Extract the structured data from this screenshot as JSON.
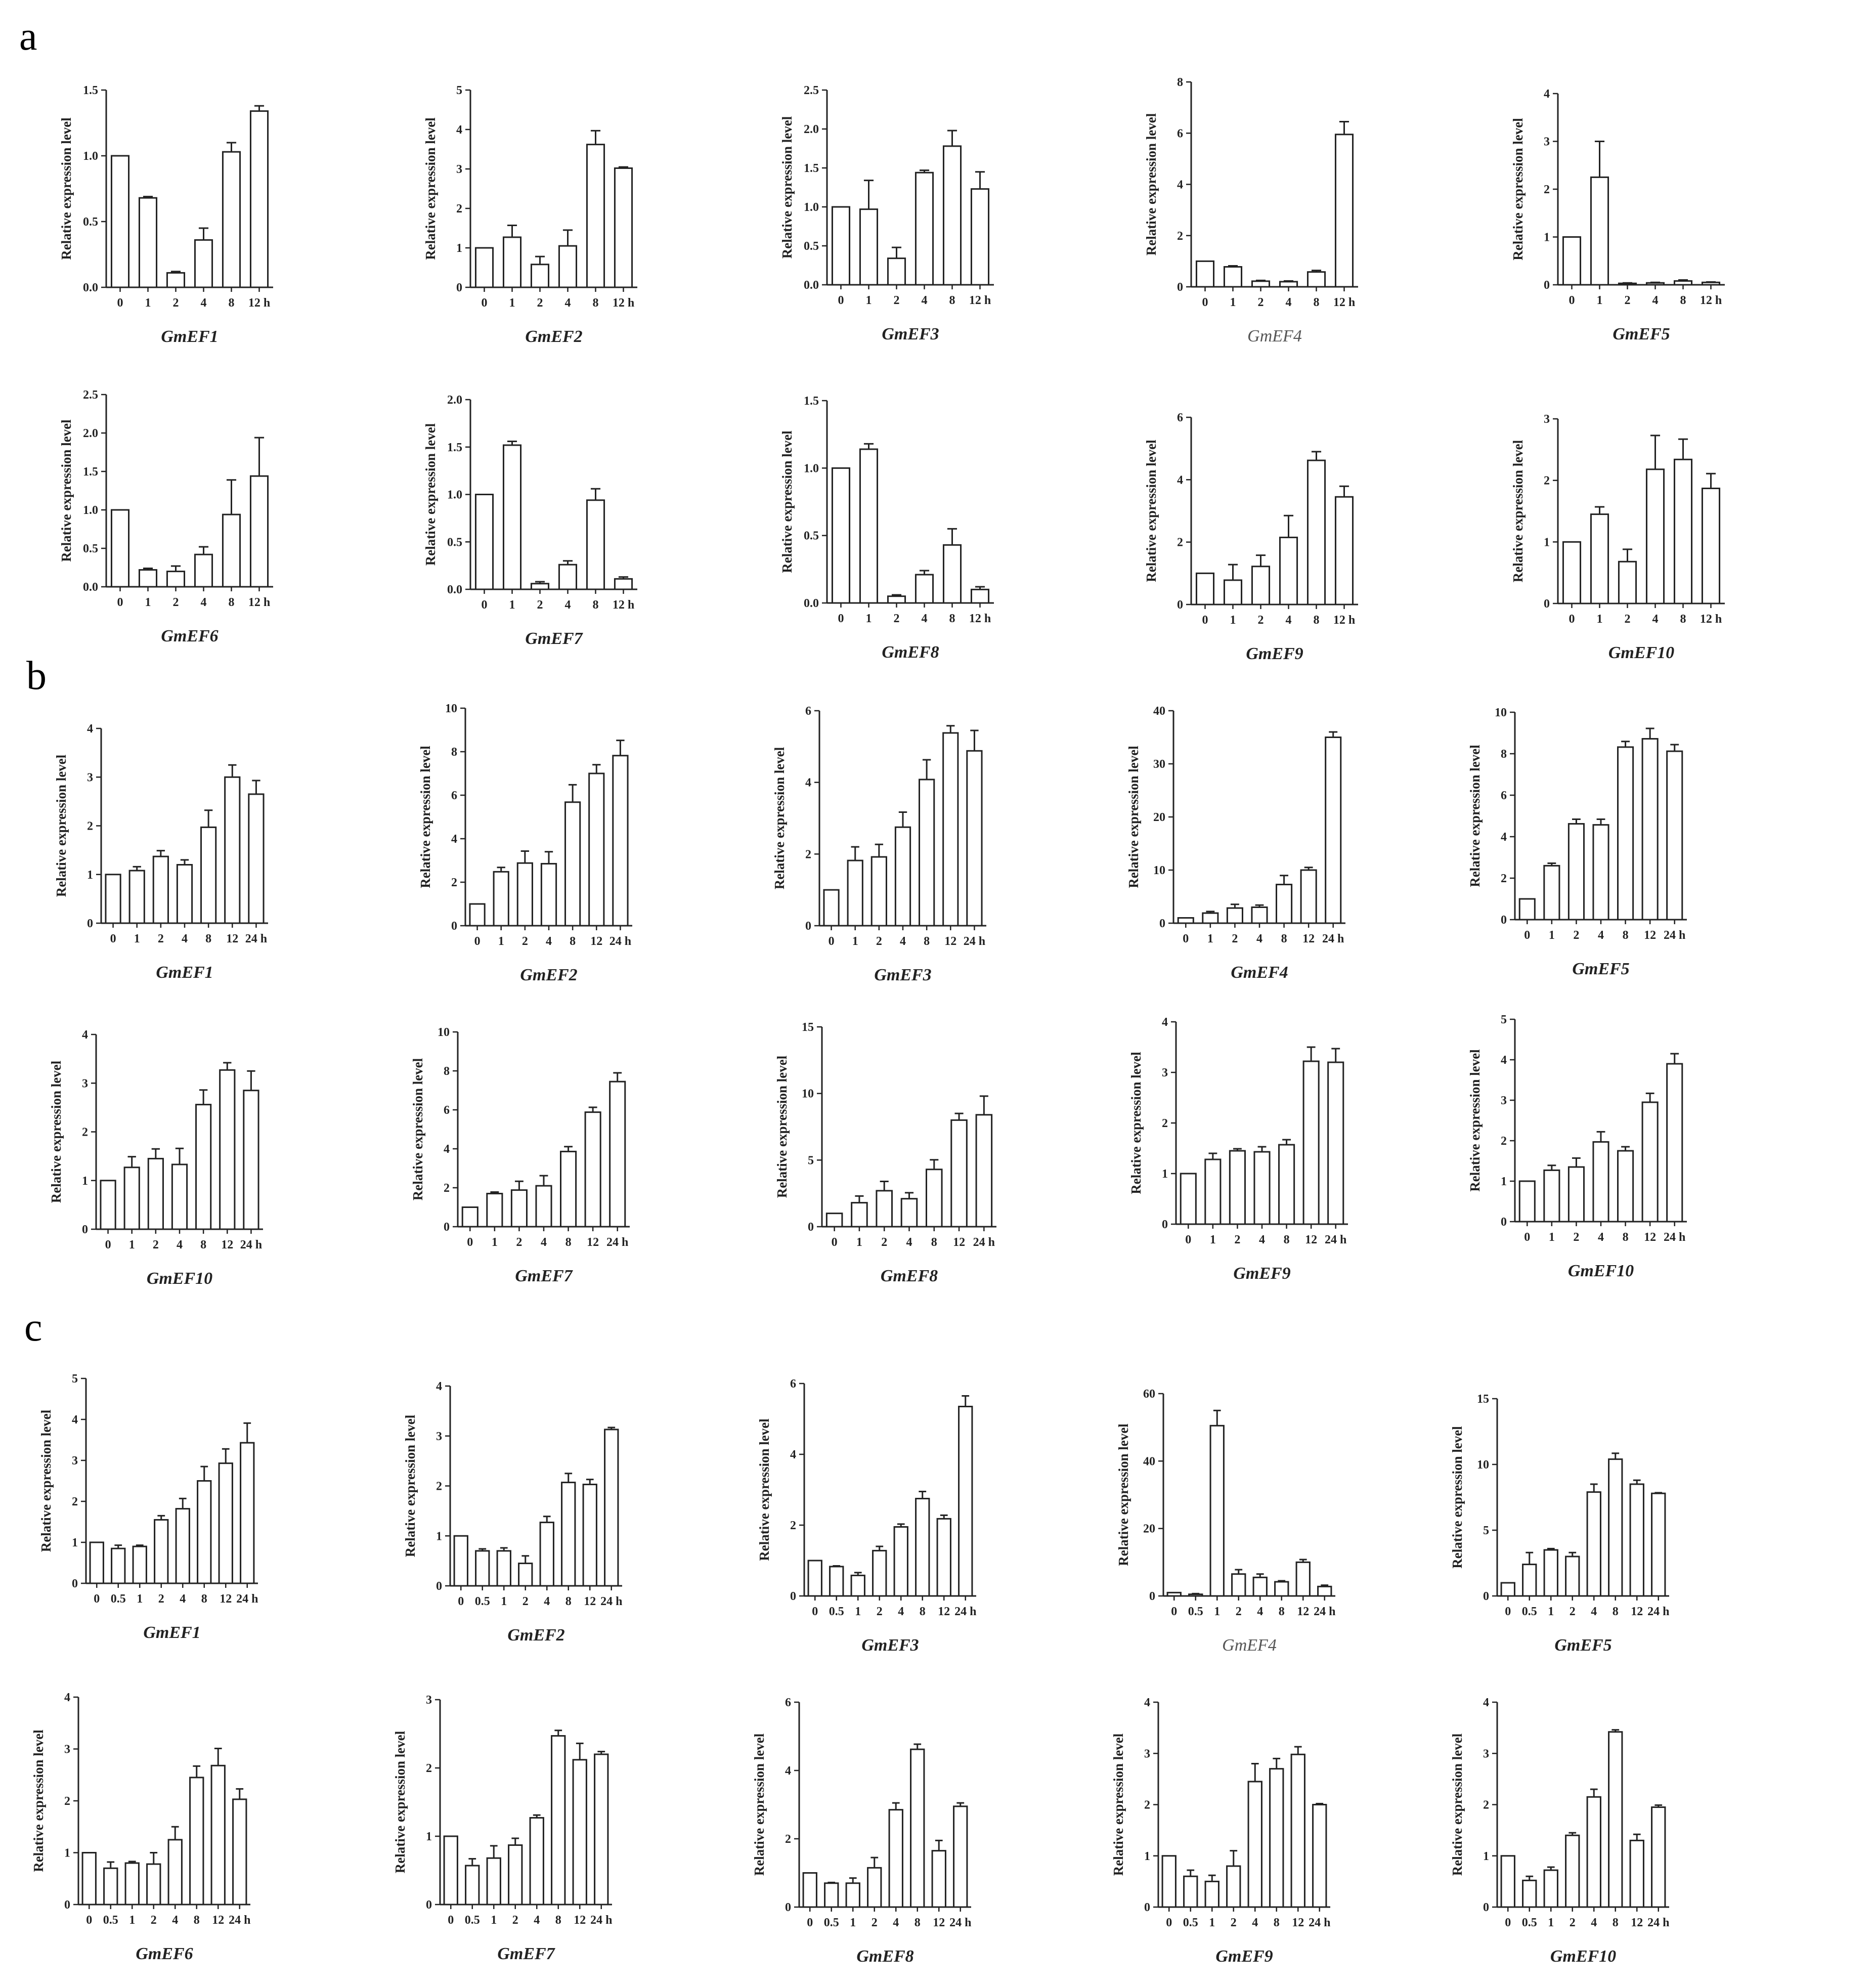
{
  "panels": [
    {
      "label": "a"
    },
    {
      "label": "b"
    },
    {
      "label": "c"
    }
  ],
  "chart_data": [
    {
      "panel": "a",
      "type": "bar",
      "title": "GmEF1",
      "ylabel": "Relative expression  level",
      "categories": [
        "0",
        "1",
        "2",
        "4",
        "8",
        "12 h"
      ],
      "values": [
        1.0,
        0.68,
        0.11,
        0.36,
        1.03,
        1.34
      ],
      "errors": [
        0,
        0.01,
        0.01,
        0.09,
        0.07,
        0.04
      ],
      "ylim": [
        0,
        1.5
      ],
      "yticks": [
        "0.0",
        "0.5",
        "1.0",
        "1.5"
      ]
    },
    {
      "panel": "a",
      "type": "bar",
      "title": "GmEF2",
      "ylabel": "Relative expression  level",
      "categories": [
        "0",
        "1",
        "2",
        "4",
        "8",
        "12 h"
      ],
      "values": [
        1.0,
        1.27,
        0.58,
        1.05,
        3.62,
        3.02
      ],
      "errors": [
        0,
        0.3,
        0.2,
        0.4,
        0.35,
        0.03
      ],
      "ylim": [
        0,
        5
      ],
      "yticks": [
        "0",
        "1",
        "2",
        "3",
        "4",
        "5"
      ]
    },
    {
      "panel": "a",
      "type": "bar",
      "title": "GmEF3",
      "ylabel": "Relative expression  level",
      "categories": [
        "0",
        "1",
        "2",
        "4",
        "8",
        "12 h"
      ],
      "values": [
        1.0,
        0.97,
        0.34,
        1.44,
        1.78,
        1.23
      ],
      "errors": [
        0,
        0.37,
        0.14,
        0.03,
        0.2,
        0.22
      ],
      "ylim": [
        0,
        2.5
      ],
      "yticks": [
        "0.0",
        "0.5",
        "1.0",
        "1.5",
        "2.0",
        "2.5"
      ]
    },
    {
      "panel": "a",
      "type": "bar",
      "title": "GmEF4",
      "title_style": "light",
      "ylabel": "Relative expression level",
      "categories": [
        "0",
        "1",
        "2",
        "4",
        "8",
        "12 h"
      ],
      "values": [
        1.0,
        0.78,
        0.22,
        0.2,
        0.58,
        5.95
      ],
      "errors": [
        0,
        0.04,
        0.03,
        0.03,
        0.06,
        0.5
      ],
      "ylim": [
        0,
        8
      ],
      "yticks": [
        "0",
        "2",
        "4",
        "6",
        "8"
      ]
    },
    {
      "panel": "a",
      "type": "bar",
      "title": "GmEF5",
      "ylabel": "Relative expression  level",
      "categories": [
        "0",
        "1",
        "2",
        "4",
        "8",
        "12 h"
      ],
      "values": [
        1.0,
        2.25,
        0.03,
        0.04,
        0.08,
        0.05
      ],
      "errors": [
        0,
        0.75,
        0.01,
        0.01,
        0.02,
        0.01
      ],
      "ylim": [
        0,
        4
      ],
      "yticks": [
        "0",
        "1",
        "2",
        "3",
        "4"
      ]
    },
    {
      "panel": "a",
      "type": "bar",
      "title": "GmEF6",
      "ylabel": "Relative expression  level",
      "categories": [
        "0",
        "1",
        "2",
        "4",
        "8",
        "12 h"
      ],
      "values": [
        1.0,
        0.22,
        0.2,
        0.42,
        0.94,
        1.44
      ],
      "errors": [
        0,
        0.02,
        0.07,
        0.1,
        0.45,
        0.5
      ],
      "ylim": [
        0,
        2.5
      ],
      "yticks": [
        "0.0",
        "0.5",
        "1.0",
        "1.5",
        "2.0",
        "2.5"
      ]
    },
    {
      "panel": "a",
      "type": "bar",
      "title": "GmEF7",
      "ylabel": "Relative expression  level",
      "categories": [
        "0",
        "1",
        "2",
        "4",
        "8",
        "12 h"
      ],
      "values": [
        1.0,
        1.52,
        0.06,
        0.26,
        0.94,
        0.11
      ],
      "errors": [
        0,
        0.04,
        0.02,
        0.04,
        0.12,
        0.02
      ],
      "ylim": [
        0,
        2.0
      ],
      "yticks": [
        "0.0",
        "0.5",
        "1.0",
        "1.5",
        "2.0"
      ]
    },
    {
      "panel": "a",
      "type": "bar",
      "title": "GmEF8",
      "ylabel": "Relative expression  level",
      "categories": [
        "0",
        "1",
        "2",
        "4",
        "8",
        "12 h"
      ],
      "values": [
        1.0,
        1.14,
        0.05,
        0.21,
        0.43,
        0.1
      ],
      "errors": [
        0,
        0.04,
        0.01,
        0.03,
        0.12,
        0.02
      ],
      "ylim": [
        0,
        1.5
      ],
      "yticks": [
        "0.0",
        "0.5",
        "1.0",
        "1.5"
      ]
    },
    {
      "panel": "a",
      "type": "bar",
      "title": "GmEF9",
      "ylabel": "Relative expression  level",
      "categories": [
        "0",
        "1",
        "2",
        "4",
        "8",
        "12 h"
      ],
      "values": [
        1.0,
        0.78,
        1.22,
        2.15,
        4.62,
        3.45
      ],
      "errors": [
        0,
        0.5,
        0.36,
        0.7,
        0.28,
        0.34
      ],
      "ylim": [
        0,
        6
      ],
      "yticks": [
        "0",
        "2",
        "4",
        "6"
      ]
    },
    {
      "panel": "a",
      "type": "bar",
      "title": "GmEF10",
      "ylabel": "Relative expression  level",
      "categories": [
        "0",
        "1",
        "2",
        "4",
        "8",
        "12 h"
      ],
      "values": [
        1.0,
        1.45,
        0.68,
        2.18,
        2.34,
        1.87
      ],
      "errors": [
        0,
        0.12,
        0.2,
        0.55,
        0.33,
        0.24
      ],
      "ylim": [
        0,
        3
      ],
      "yticks": [
        "0",
        "1",
        "2",
        "3"
      ]
    },
    {
      "panel": "b",
      "type": "bar",
      "title": "GmEF1",
      "ylabel": "Relative expression  level",
      "categories": [
        "0",
        "1",
        "2",
        "4",
        "8",
        "12",
        "24 h"
      ],
      "values": [
        1.0,
        1.08,
        1.37,
        1.2,
        1.97,
        3.0,
        2.65
      ],
      "errors": [
        0,
        0.08,
        0.12,
        0.1,
        0.35,
        0.25,
        0.28
      ],
      "ylim": [
        0,
        4
      ],
      "yticks": [
        "0",
        "1",
        "2",
        "3",
        "4"
      ]
    },
    {
      "panel": "b",
      "type": "bar",
      "title": "GmEF2",
      "ylabel": "Relative expression  level",
      "categories": [
        "0",
        "1",
        "2",
        "4",
        "8",
        "12",
        "24 h"
      ],
      "values": [
        1.0,
        2.48,
        2.88,
        2.85,
        5.68,
        7.0,
        7.82
      ],
      "errors": [
        0,
        0.2,
        0.55,
        0.55,
        0.8,
        0.4,
        0.7
      ],
      "ylim": [
        0,
        10
      ],
      "yticks": [
        "0",
        "2",
        "4",
        "6",
        "8",
        "10"
      ]
    },
    {
      "panel": "b",
      "type": "bar",
      "title": "GmEF3",
      "ylabel": "Relative expression  level",
      "categories": [
        "0",
        "1",
        "2",
        "4",
        "8",
        "12",
        "24 h"
      ],
      "values": [
        1.0,
        1.82,
        1.92,
        2.75,
        4.08,
        5.38,
        4.88
      ],
      "errors": [
        0,
        0.38,
        0.35,
        0.42,
        0.55,
        0.2,
        0.57
      ],
      "ylim": [
        0,
        6
      ],
      "yticks": [
        "0",
        "2",
        "4",
        "6"
      ]
    },
    {
      "panel": "b",
      "type": "bar",
      "title": "GmEF4",
      "ylabel": "Relative expression  level",
      "categories": [
        "0",
        "1",
        "2",
        "4",
        "8",
        "12",
        "24 h"
      ],
      "values": [
        1.0,
        1.9,
        2.85,
        3.0,
        7.28,
        10.0,
        35.0
      ],
      "errors": [
        0,
        0.3,
        0.7,
        0.4,
        1.7,
        0.5,
        1.0
      ],
      "ylim": [
        0,
        40
      ],
      "yticks": [
        "0",
        "10",
        "20",
        "30",
        "40"
      ]
    },
    {
      "panel": "b",
      "type": "bar",
      "title": "GmEF5",
      "ylabel": "Relative expression  level",
      "categories": [
        "0",
        "1",
        "2",
        "4",
        "8",
        "12",
        "24 h"
      ],
      "values": [
        1.0,
        2.6,
        4.62,
        4.57,
        8.32,
        8.72,
        8.12
      ],
      "errors": [
        0,
        0.12,
        0.22,
        0.27,
        0.27,
        0.5,
        0.32
      ],
      "ylim": [
        0,
        10
      ],
      "yticks": [
        "0",
        "2",
        "4",
        "6",
        "8",
        "10"
      ]
    },
    {
      "panel": "b",
      "type": "bar",
      "title": "GmEF10",
      "ylabel": "Relative expression  level",
      "categories": [
        "0",
        "1",
        "2",
        "4",
        "8",
        "12",
        "24 h"
      ],
      "values": [
        1.0,
        1.27,
        1.45,
        1.33,
        2.56,
        3.27,
        2.85
      ],
      "errors": [
        0,
        0.22,
        0.2,
        0.33,
        0.3,
        0.15,
        0.4
      ],
      "ylim": [
        0,
        4
      ],
      "yticks": [
        "0",
        "1",
        "2",
        "3",
        "4"
      ]
    },
    {
      "panel": "b",
      "type": "bar",
      "title": "GmEF7",
      "ylabel": "Relative expression  level",
      "categories": [
        "0",
        "1",
        "2",
        "4",
        "8",
        "12",
        "24 h"
      ],
      "values": [
        1.0,
        1.7,
        1.88,
        2.1,
        3.86,
        5.88,
        7.45
      ],
      "errors": [
        0,
        0.08,
        0.45,
        0.52,
        0.25,
        0.25,
        0.45
      ],
      "ylim": [
        0,
        10
      ],
      "yticks": [
        "0",
        "2",
        "4",
        "6",
        "8",
        "10"
      ]
    },
    {
      "panel": "b",
      "type": "bar",
      "title": "GmEF8",
      "ylabel": "Relative expression  level",
      "categories": [
        "0",
        "1",
        "2",
        "4",
        "8",
        "12",
        "24 h"
      ],
      "values": [
        1.0,
        1.8,
        2.7,
        2.1,
        4.3,
        8.0,
        8.4
      ],
      "errors": [
        0,
        0.5,
        0.7,
        0.45,
        0.72,
        0.5,
        1.4
      ],
      "ylim": [
        0,
        15
      ],
      "yticks": [
        "0",
        "5",
        "10",
        "15"
      ]
    },
    {
      "panel": "b",
      "type": "bar",
      "title": "GmEF9",
      "ylabel": "Relative expression  level",
      "categories": [
        "0",
        "1",
        "2",
        "4",
        "8",
        "12",
        "24 h"
      ],
      "values": [
        1.0,
        1.28,
        1.45,
        1.43,
        1.57,
        3.22,
        3.2
      ],
      "errors": [
        0,
        0.12,
        0.04,
        0.1,
        0.1,
        0.28,
        0.27
      ],
      "ylim": [
        0,
        4
      ],
      "yticks": [
        "0",
        "1",
        "2",
        "3",
        "4"
      ]
    },
    {
      "panel": "b",
      "type": "bar",
      "title": "GmEF10",
      "ylabel": "Relative expression  level",
      "categories": [
        "0",
        "1",
        "2",
        "4",
        "8",
        "12",
        "24 h"
      ],
      "values": [
        1.0,
        1.27,
        1.35,
        1.97,
        1.75,
        2.95,
        3.9
      ],
      "errors": [
        0,
        0.12,
        0.22,
        0.25,
        0.1,
        0.22,
        0.25
      ],
      "ylim": [
        0,
        5
      ],
      "yticks": [
        "0",
        "1",
        "2",
        "3",
        "4",
        "5"
      ]
    },
    {
      "panel": "c",
      "type": "bar",
      "title": "GmEF1",
      "ylabel": "Relative expression  level",
      "categories": [
        "0",
        "0.5",
        "1",
        "2",
        "4",
        "8",
        "12",
        "24 h"
      ],
      "values": [
        1.0,
        0.85,
        0.9,
        1.55,
        1.82,
        2.5,
        2.93,
        3.43
      ],
      "errors": [
        0,
        0.08,
        0.03,
        0.1,
        0.25,
        0.35,
        0.35,
        0.48
      ],
      "ylim": [
        0,
        5
      ],
      "yticks": [
        "0",
        "1",
        "2",
        "3",
        "4",
        "5"
      ]
    },
    {
      "panel": "c",
      "type": "bar",
      "title": "GmEF2",
      "ylabel": "Relative expression  level",
      "categories": [
        "0",
        "0.5",
        "1",
        "2",
        "4",
        "8",
        "12",
        "24 h"
      ],
      "values": [
        1.0,
        0.7,
        0.7,
        0.45,
        1.27,
        2.07,
        2.03,
        3.13
      ],
      "errors": [
        0,
        0.04,
        0.06,
        0.15,
        0.12,
        0.18,
        0.1,
        0.04
      ],
      "ylim": [
        0,
        4
      ],
      "yticks": [
        "0",
        "1",
        "2",
        "3",
        "4"
      ]
    },
    {
      "panel": "c",
      "type": "bar",
      "title": "GmEF3",
      "ylabel": "Relative expression  level",
      "categories": [
        "0",
        "0.5",
        "1",
        "2",
        "4",
        "8",
        "12",
        "24 h"
      ],
      "values": [
        1.0,
        0.83,
        0.58,
        1.28,
        1.95,
        2.75,
        2.18,
        5.35
      ],
      "errors": [
        0,
        0.02,
        0.08,
        0.12,
        0.08,
        0.2,
        0.1,
        0.3
      ],
      "ylim": [
        0,
        6
      ],
      "yticks": [
        "0",
        "2",
        "4",
        "6"
      ]
    },
    {
      "panel": "c",
      "type": "bar",
      "title": "GmEF4",
      "title_style": "light",
      "ylabel": "Relative expression level",
      "categories": [
        "0",
        "0.5",
        "1",
        "2",
        "4",
        "8",
        "12",
        "24 h"
      ],
      "values": [
        1.0,
        0.5,
        50.5,
        6.5,
        5.5,
        4.2,
        10.0,
        2.8
      ],
      "errors": [
        0,
        0.2,
        4.5,
        1.3,
        1.0,
        0.3,
        0.8,
        0.4
      ],
      "ylim": [
        0,
        60
      ],
      "yticks": [
        "0",
        "20",
        "40",
        "60"
      ]
    },
    {
      "panel": "c",
      "type": "bar",
      "title": "GmEF5",
      "ylabel": "Relative expression  level",
      "categories": [
        "0",
        "0.5",
        "1",
        "2",
        "4",
        "8",
        "12",
        "24 h"
      ],
      "values": [
        1.0,
        2.4,
        3.5,
        3.0,
        7.9,
        10.4,
        8.5,
        7.8
      ],
      "errors": [
        0,
        0.9,
        0.1,
        0.3,
        0.6,
        0.45,
        0.3,
        0.05
      ],
      "ylim": [
        0,
        15
      ],
      "yticks": [
        "0",
        "5",
        "10",
        "15"
      ]
    },
    {
      "panel": "c",
      "type": "bar",
      "title": "GmEF6",
      "ylabel": "Relative expression  level",
      "categories": [
        "0",
        "0.5",
        "1",
        "2",
        "4",
        "8",
        "12",
        "24 h"
      ],
      "values": [
        1.0,
        0.7,
        0.8,
        0.78,
        1.25,
        2.45,
        2.68,
        2.03
      ],
      "errors": [
        0,
        0.12,
        0.03,
        0.22,
        0.25,
        0.22,
        0.33,
        0.2
      ],
      "ylim": [
        0,
        4
      ],
      "yticks": [
        "0",
        "1",
        "2",
        "3",
        "4"
      ]
    },
    {
      "panel": "c",
      "type": "bar",
      "title": "GmEF7",
      "ylabel": "Relative expression  level",
      "categories": [
        "0",
        "0.5",
        "1",
        "2",
        "4",
        "8",
        "12",
        "24 h"
      ],
      "values": [
        1.0,
        0.57,
        0.68,
        0.87,
        1.27,
        2.47,
        2.12,
        2.2
      ],
      "errors": [
        0,
        0.1,
        0.18,
        0.1,
        0.04,
        0.08,
        0.24,
        0.04
      ],
      "ylim": [
        0,
        3
      ],
      "yticks": [
        "0",
        "1",
        "2",
        "3"
      ]
    },
    {
      "panel": "c",
      "type": "bar",
      "title": "GmEF8",
      "ylabel": "Relative expression  level",
      "categories": [
        "0",
        "0.5",
        "1",
        "2",
        "4",
        "8",
        "12",
        "24 h"
      ],
      "values": [
        1.0,
        0.7,
        0.7,
        1.15,
        2.85,
        4.62,
        1.65,
        2.95
      ],
      "errors": [
        0,
        0.02,
        0.15,
        0.3,
        0.2,
        0.15,
        0.3,
        0.1
      ],
      "ylim": [
        0,
        6
      ],
      "yticks": [
        "0",
        "2",
        "4",
        "6"
      ]
    },
    {
      "panel": "c",
      "type": "bar",
      "title": "GmEF9",
      "ylabel": "Relative expression  level",
      "categories": [
        "0",
        "0.5",
        "1",
        "2",
        "4",
        "8",
        "12",
        "24 h"
      ],
      "values": [
        1.0,
        0.6,
        0.5,
        0.8,
        2.45,
        2.7,
        2.98,
        2.0
      ],
      "errors": [
        0,
        0.12,
        0.12,
        0.3,
        0.35,
        0.2,
        0.15,
        0.02
      ],
      "ylim": [
        0,
        4
      ],
      "yticks": [
        "0",
        "1",
        "2",
        "3",
        "4"
      ]
    },
    {
      "panel": "c",
      "type": "bar",
      "title": "GmEF10",
      "ylabel": "Relative expression  level",
      "categories": [
        "0",
        "0.5",
        "1",
        "2",
        "4",
        "8",
        "12",
        "24 h"
      ],
      "values": [
        1.0,
        0.52,
        0.72,
        1.4,
        2.15,
        3.42,
        1.3,
        1.95
      ],
      "errors": [
        0,
        0.08,
        0.06,
        0.05,
        0.15,
        0.04,
        0.12,
        0.04
      ],
      "ylim": [
        0,
        4
      ],
      "yticks": [
        "0",
        "1",
        "2",
        "3",
        "4"
      ]
    }
  ]
}
